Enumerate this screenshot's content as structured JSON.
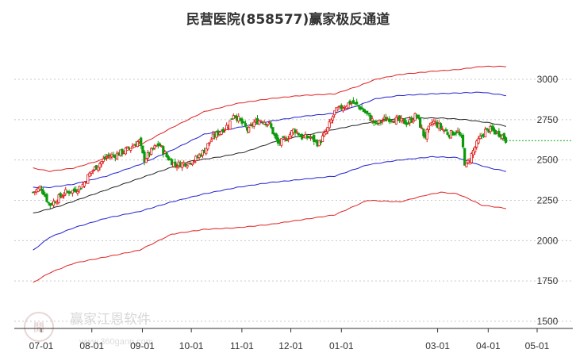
{
  "chart_data": {
    "type": "candlestick",
    "title": "民营医院(858577)赢家极反通道",
    "y_ticks": [
      1500,
      1750,
      2000,
      2250,
      2500,
      2750,
      3000
    ],
    "ylim": [
      1480,
      3100
    ],
    "grid": "horizontal dashed",
    "x_labels": [
      "07-01",
      "08-01",
      "09-01",
      "10-01",
      "11-01",
      "12-01",
      "01-01",
      "03-01",
      "04-01",
      "05-01"
    ],
    "x_label_days": [
      0,
      31,
      62,
      92,
      123,
      153,
      184,
      243,
      274,
      304
    ],
    "x_range_days": [
      -10,
      318
    ],
    "last_close_level": 2620,
    "channels": [
      {
        "role": "outer-upper",
        "color": "#e02020",
        "points": [
          [
            -5,
            2450
          ],
          [
            5,
            2430
          ],
          [
            20,
            2450
          ],
          [
            40,
            2510
          ],
          [
            60,
            2590
          ],
          [
            80,
            2700
          ],
          [
            100,
            2800
          ],
          [
            120,
            2850
          ],
          [
            140,
            2880
          ],
          [
            160,
            2900
          ],
          [
            180,
            2910
          ],
          [
            195,
            2960
          ],
          [
            205,
            3000
          ],
          [
            220,
            3030
          ],
          [
            240,
            3050
          ],
          [
            255,
            3060
          ],
          [
            270,
            3080
          ],
          [
            285,
            3080
          ]
        ]
      },
      {
        "role": "upper",
        "color": "#2020d0",
        "points": [
          [
            -5,
            2330
          ],
          [
            5,
            2330
          ],
          [
            20,
            2350
          ],
          [
            40,
            2400
          ],
          [
            60,
            2470
          ],
          [
            80,
            2560
          ],
          [
            100,
            2660
          ],
          [
            120,
            2700
          ],
          [
            140,
            2740
          ],
          [
            160,
            2770
          ],
          [
            180,
            2790
          ],
          [
            195,
            2840
          ],
          [
            205,
            2880
          ],
          [
            220,
            2900
          ],
          [
            240,
            2910
          ],
          [
            255,
            2915
          ],
          [
            270,
            2920
          ],
          [
            285,
            2900
          ]
        ]
      },
      {
        "role": "center",
        "color": "#222222",
        "points": [
          [
            -5,
            2170
          ],
          [
            10,
            2210
          ],
          [
            30,
            2280
          ],
          [
            50,
            2350
          ],
          [
            70,
            2420
          ],
          [
            90,
            2490
          ],
          [
            110,
            2520
          ],
          [
            125,
            2550
          ],
          [
            145,
            2620
          ],
          [
            165,
            2660
          ],
          [
            180,
            2690
          ],
          [
            195,
            2720
          ],
          [
            210,
            2750
          ],
          [
            225,
            2760
          ],
          [
            245,
            2760
          ],
          [
            260,
            2750
          ],
          [
            275,
            2730
          ],
          [
            285,
            2710
          ]
        ]
      },
      {
        "role": "lower",
        "color": "#2020d0",
        "points": [
          [
            -5,
            1940
          ],
          [
            5,
            2020
          ],
          [
            20,
            2080
          ],
          [
            40,
            2140
          ],
          [
            60,
            2180
          ],
          [
            80,
            2240
          ],
          [
            100,
            2290
          ],
          [
            120,
            2330
          ],
          [
            140,
            2360
          ],
          [
            160,
            2380
          ],
          [
            180,
            2400
          ],
          [
            200,
            2470
          ],
          [
            220,
            2500
          ],
          [
            240,
            2520
          ],
          [
            255,
            2515
          ],
          [
            265,
            2480
          ],
          [
            275,
            2450
          ],
          [
            285,
            2430
          ]
        ]
      },
      {
        "role": "outer-lower",
        "color": "#e02020",
        "points": [
          [
            -5,
            1740
          ],
          [
            5,
            1800
          ],
          [
            20,
            1860
          ],
          [
            40,
            1900
          ],
          [
            60,
            1940
          ],
          [
            80,
            2040
          ],
          [
            100,
            2070
          ],
          [
            120,
            2080
          ],
          [
            140,
            2100
          ],
          [
            160,
            2130
          ],
          [
            180,
            2160
          ],
          [
            200,
            2250
          ],
          [
            220,
            2240
          ],
          [
            235,
            2280
          ],
          [
            245,
            2300
          ],
          [
            255,
            2290
          ],
          [
            262,
            2260
          ],
          [
            270,
            2220
          ],
          [
            285,
            2200
          ]
        ]
      }
    ],
    "close_path": [
      [
        -5,
        2300
      ],
      [
        0,
        2330
      ],
      [
        5,
        2220
      ],
      [
        10,
        2260
      ],
      [
        15,
        2300
      ],
      [
        20,
        2310
      ],
      [
        25,
        2340
      ],
      [
        30,
        2420
      ],
      [
        35,
        2470
      ],
      [
        40,
        2520
      ],
      [
        45,
        2530
      ],
      [
        50,
        2550
      ],
      [
        55,
        2580
      ],
      [
        60,
        2620
      ],
      [
        63,
        2500
      ],
      [
        68,
        2560
      ],
      [
        72,
        2600
      ],
      [
        77,
        2520
      ],
      [
        82,
        2470
      ],
      [
        88,
        2480
      ],
      [
        94,
        2500
      ],
      [
        100,
        2560
      ],
      [
        105,
        2640
      ],
      [
        110,
        2680
      ],
      [
        115,
        2720
      ],
      [
        118,
        2790
      ],
      [
        122,
        2740
      ],
      [
        127,
        2680
      ],
      [
        130,
        2730
      ],
      [
        135,
        2750
      ],
      [
        140,
        2720
      ],
      [
        145,
        2600
      ],
      [
        150,
        2630
      ],
      [
        155,
        2690
      ],
      [
        160,
        2640
      ],
      [
        165,
        2640
      ],
      [
        170,
        2600
      ],
      [
        175,
        2680
      ],
      [
        180,
        2800
      ],
      [
        185,
        2830
      ],
      [
        190,
        2860
      ],
      [
        195,
        2830
      ],
      [
        200,
        2780
      ],
      [
        205,
        2720
      ],
      [
        210,
        2750
      ],
      [
        215,
        2760
      ],
      [
        220,
        2740
      ],
      [
        225,
        2730
      ],
      [
        230,
        2780
      ],
      [
        235,
        2640
      ],
      [
        240,
        2740
      ],
      [
        245,
        2700
      ],
      [
        250,
        2660
      ],
      [
        255,
        2680
      ],
      [
        258,
        2620
      ],
      [
        260,
        2450
      ],
      [
        265,
        2560
      ],
      [
        268,
        2620
      ],
      [
        272,
        2680
      ],
      [
        275,
        2690
      ],
      [
        279,
        2670
      ],
      [
        282,
        2660
      ],
      [
        285,
        2620
      ]
    ]
  }
}
